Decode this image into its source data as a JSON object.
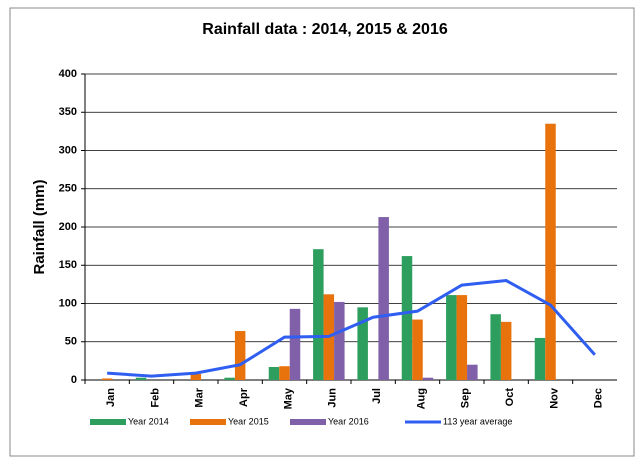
{
  "chart_data": {
    "type": "bar",
    "title": "Rainfall data  : 2014, 2015 & 2016",
    "y_label": "Rainfall (mm)",
    "categories": [
      "Jan",
      "Feb",
      "Mar",
      "Apr",
      "May",
      "Jun",
      "Jul",
      "Aug",
      "Sep",
      "Oct",
      "Nov",
      "Dec"
    ],
    "series": [
      {
        "name": "Year 2014",
        "color": "#2e9e5e",
        "values": [
          0,
          3,
          0,
          3,
          17,
          171,
          95,
          162,
          111,
          86,
          55,
          0
        ]
      },
      {
        "name": "Year 2015",
        "color": "#e8720c",
        "values": [
          2,
          0,
          8,
          64,
          18,
          112,
          0,
          79,
          111,
          76,
          335,
          0
        ]
      },
      {
        "name": "Year 2016",
        "color": "#8060a8",
        "values": [
          0,
          0,
          0,
          0,
          93,
          102,
          213,
          3,
          20,
          0,
          0,
          0
        ]
      },
      {
        "name": "113 year average",
        "type": "line",
        "color": "#2f5ef0",
        "values": [
          9,
          5,
          9,
          20,
          56,
          57,
          82,
          90,
          124,
          130,
          98,
          33
        ]
      }
    ],
    "ylim": [
      0,
      400
    ],
    "yticks": [
      0,
      50,
      100,
      150,
      200,
      250,
      300,
      350,
      400
    ],
    "grid": true,
    "legend": "bottom"
  }
}
